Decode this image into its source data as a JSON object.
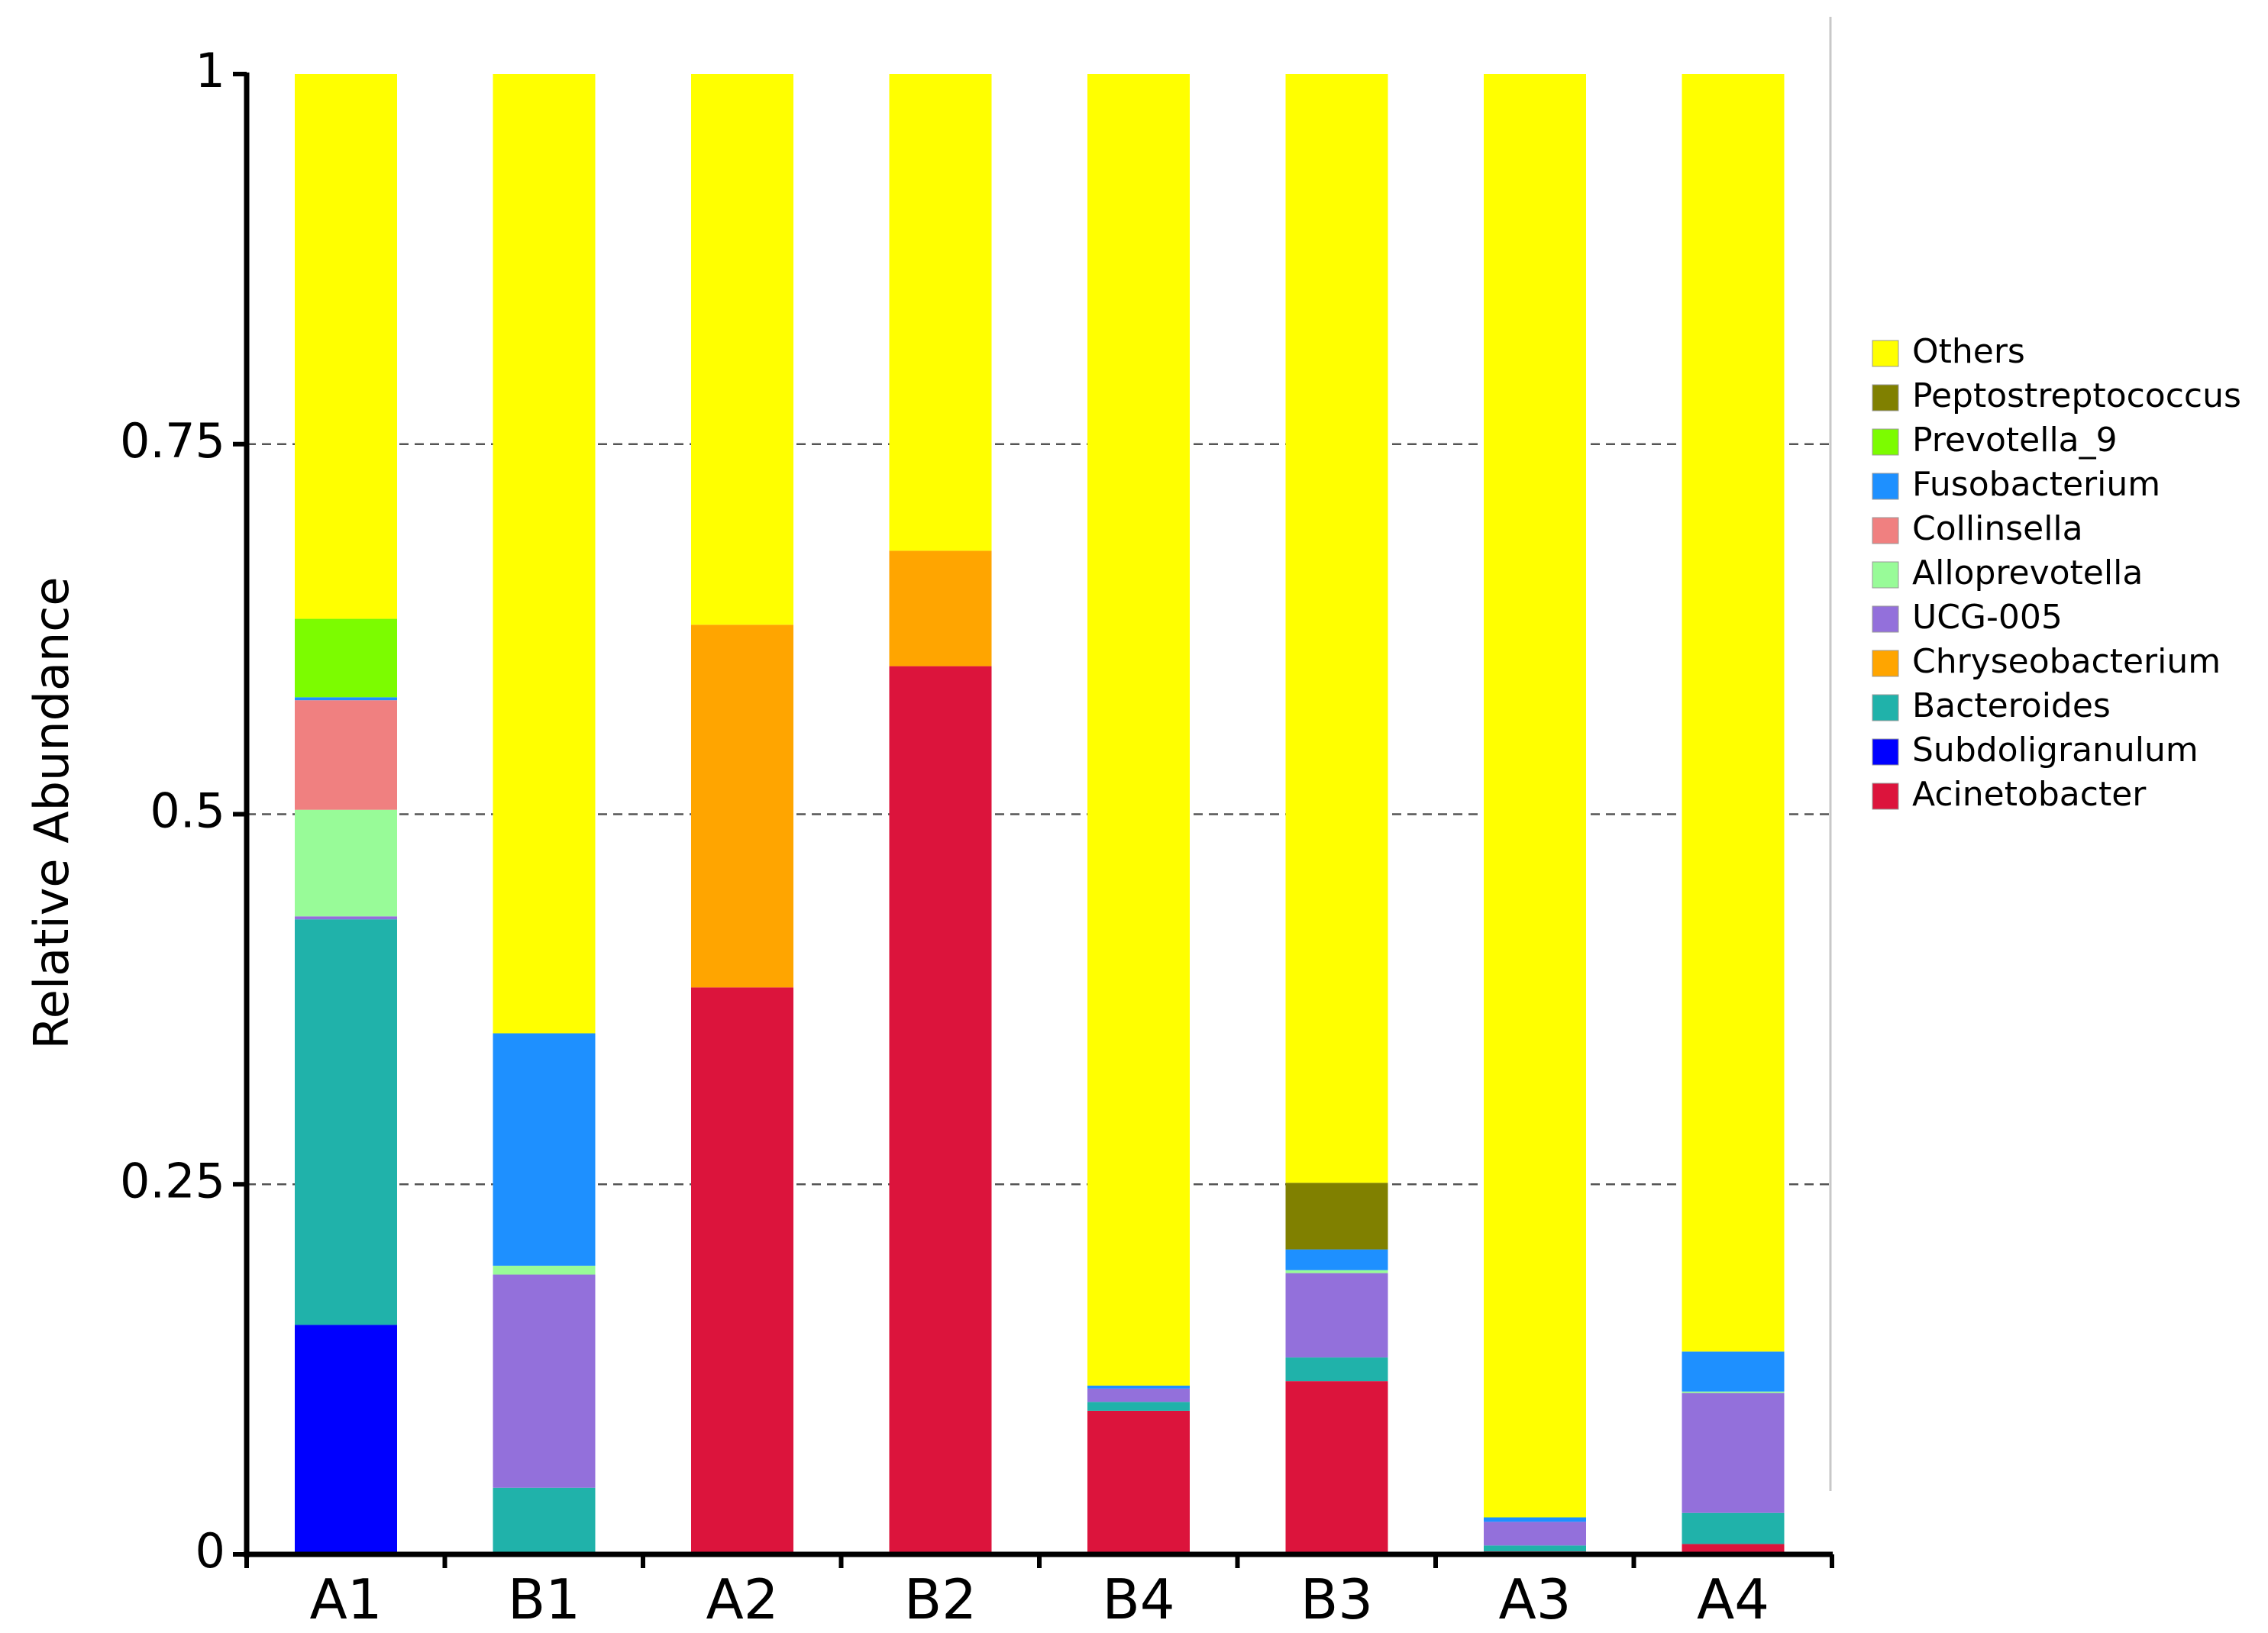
{
  "chart_data": {
    "type": "bar",
    "stacked": true,
    "ylabel": "Relative Abundance",
    "xlabel": "",
    "ylim": [
      0,
      1
    ],
    "yticks": [
      {
        "value": 0,
        "label": "0"
      },
      {
        "value": 0.25,
        "label": "0.25"
      },
      {
        "value": 0.5,
        "label": "0.5"
      },
      {
        "value": 0.75,
        "label": "0.75"
      },
      {
        "value": 1,
        "label": "1"
      }
    ],
    "grid": "horizontal dashed at 0.25, 0.5, 0.75",
    "legend_position": "right",
    "categories": [
      "A1",
      "B1",
      "A2",
      "B2",
      "B4",
      "B3",
      "A3",
      "A4"
    ],
    "series": [
      {
        "name": "Acinetobacter",
        "color": "#dc143c",
        "values": [
          0,
          0,
          0.383,
          0.6,
          0.097,
          0.117,
          0.002,
          0.007
        ]
      },
      {
        "name": "Subdoligranulum",
        "color": "#0000ff",
        "values": [
          0.155,
          0,
          0,
          0,
          0,
          0,
          0,
          0
        ]
      },
      {
        "name": "Bacteroides",
        "color": "#20b2aa",
        "values": [
          0.274,
          0.045,
          0,
          0,
          0.006,
          0.016,
          0.004,
          0.021
        ]
      },
      {
        "name": "Chryseobacterium",
        "color": "#ffa500",
        "values": [
          0,
          0,
          0.245,
          0.078,
          0,
          0,
          0,
          0
        ]
      },
      {
        "name": "UCG-005",
        "color": "#9370db",
        "values": [
          0.002,
          0.144,
          0,
          0,
          0.009,
          0.057,
          0.016,
          0.081
        ]
      },
      {
        "name": "Alloprevotella",
        "color": "#98fb98",
        "values": [
          0.072,
          0.006,
          0,
          0,
          0,
          0.002,
          0,
          0.001
        ]
      },
      {
        "name": "Collinsella",
        "color": "#f08080",
        "values": [
          0.074,
          0,
          0,
          0,
          0,
          0,
          0,
          0
        ]
      },
      {
        "name": "Fusobacterium",
        "color": "#1e90ff",
        "values": [
          0.002,
          0.157,
          0,
          0,
          0.002,
          0.014,
          0.003,
          0.027
        ]
      },
      {
        "name": "Prevotella_9",
        "color": "#7cfc00",
        "values": [
          0.053,
          0,
          0,
          0,
          0,
          0,
          0,
          0
        ]
      },
      {
        "name": "Peptostreptococcus",
        "color": "#808000",
        "values": [
          0,
          0,
          0,
          0,
          0,
          0.045,
          0,
          0
        ]
      },
      {
        "name": "Others",
        "color": "#ffff00",
        "values": [
          0.368,
          0.648,
          0.372,
          0.322,
          0.886,
          0.749,
          0.975,
          0.863
        ]
      }
    ],
    "legend_order": [
      "Others",
      "Peptostreptococcus",
      "Prevotella_9",
      "Fusobacterium",
      "Collinsella",
      "Alloprevotella",
      "UCG-005",
      "Chryseobacterium",
      "Bacteroides",
      "Subdoligranulum",
      "Acinetobacter"
    ]
  }
}
